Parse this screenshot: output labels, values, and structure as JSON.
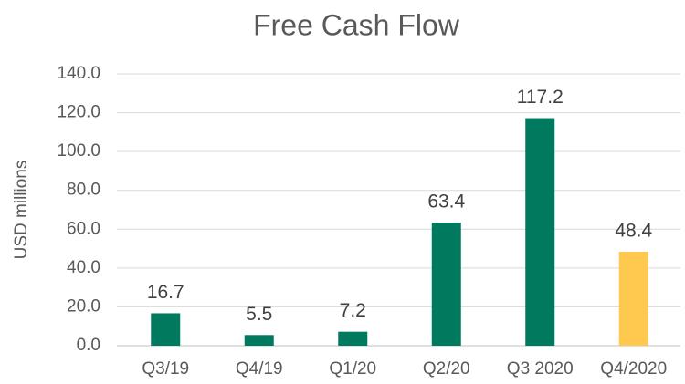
{
  "chart_data": {
    "type": "bar",
    "title": "Free Cash Flow",
    "y_label": "USD millions",
    "categories": [
      "Q3/19",
      "Q4/19",
      "Q1/20",
      "Q2/20",
      "Q3 2020",
      "Q4/2020"
    ],
    "values": [
      16.7,
      5.5,
      7.2,
      63.4,
      117.2,
      48.4
    ],
    "colors": [
      "#007a5e",
      "#007a5e",
      "#007a5e",
      "#007a5e",
      "#007a5e",
      "#ffc84e"
    ],
    "ylim": [
      0,
      140
    ],
    "yticks": [
      {
        "value": 0,
        "label": "0.0"
      },
      {
        "value": 20,
        "label": "20.0"
      },
      {
        "value": 40,
        "label": "40.0"
      },
      {
        "value": 60,
        "label": "60.0"
      },
      {
        "value": 80,
        "label": "80.0"
      },
      {
        "value": 100,
        "label": "100.0"
      },
      {
        "value": 120,
        "label": "120.0"
      },
      {
        "value": 140,
        "label": "140.0"
      }
    ],
    "grid": true
  }
}
